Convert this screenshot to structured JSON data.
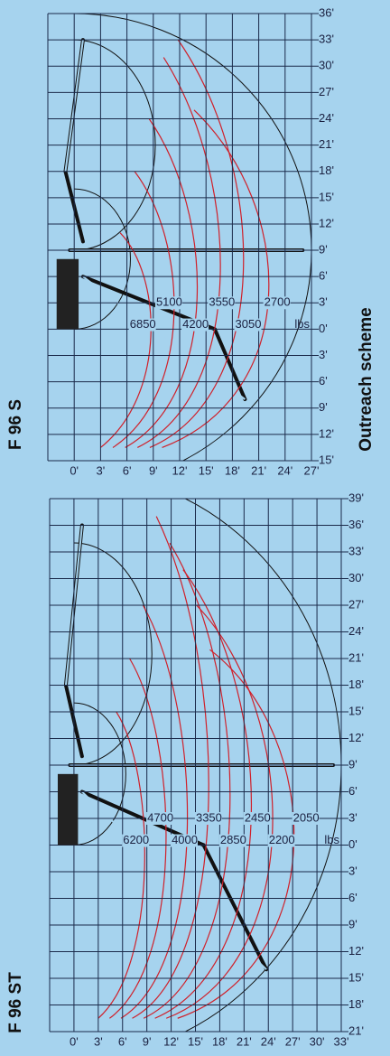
{
  "side_label": "Outreach scheme",
  "chart_data": [
    {
      "type": "outreach",
      "title": "F 96 S",
      "color": "#d0202a",
      "load_unit": "lbs",
      "loads": [
        6850,
        5100,
        4200,
        3550,
        3050,
        2700
      ],
      "xlim": [
        -3,
        27
      ],
      "ylim": [
        -15,
        36
      ],
      "xticks": [
        {
          "value": 0,
          "label": "0'"
        },
        {
          "value": 3,
          "label": "3'"
        },
        {
          "value": 6,
          "label": "6'"
        },
        {
          "value": 9,
          "label": "9'"
        },
        {
          "value": 12,
          "label": "12'"
        },
        {
          "value": 15,
          "label": "15'"
        },
        {
          "value": 18,
          "label": "18'"
        },
        {
          "value": 21,
          "label": "21'"
        },
        {
          "value": 24,
          "label": "24'"
        },
        {
          "value": 27,
          "label": "27'"
        }
      ],
      "yticks": [
        {
          "value": 36,
          "label": "36'"
        },
        {
          "value": 33,
          "label": "33'"
        },
        {
          "value": 30,
          "label": "30'"
        },
        {
          "value": 27,
          "label": "27'"
        },
        {
          "value": 24,
          "label": "24'"
        },
        {
          "value": 21,
          "label": "21'"
        },
        {
          "value": 18,
          "label": "18'"
        },
        {
          "value": 15,
          "label": "15'"
        },
        {
          "value": 12,
          "label": "12'"
        },
        {
          "value": 9,
          "label": "9'"
        },
        {
          "value": 6,
          "label": "6'"
        },
        {
          "value": 3,
          "label": "3'"
        },
        {
          "value": 0,
          "label": "0'"
        },
        {
          "value": -3,
          "label": "3'"
        },
        {
          "value": -6,
          "label": "6'"
        },
        {
          "value": -9,
          "label": "9'"
        },
        {
          "value": -12,
          "label": "12'"
        },
        {
          "value": -15,
          "label": "15'"
        }
      ]
    },
    {
      "type": "outreach",
      "title": "F 96 ST",
      "color": "#d0202a",
      "load_unit": "lbs",
      "loads": [
        6200,
        4700,
        4000,
        3350,
        2850,
        2450,
        2200,
        2050
      ],
      "xlim": [
        -3,
        33
      ],
      "ylim": [
        -21,
        39
      ],
      "xticks": [
        {
          "value": 0,
          "label": "0'"
        },
        {
          "value": 3,
          "label": "3'"
        },
        {
          "value": 6,
          "label": "6'"
        },
        {
          "value": 9,
          "label": "9'"
        },
        {
          "value": 12,
          "label": "12'"
        },
        {
          "value": 15,
          "label": "15'"
        },
        {
          "value": 18,
          "label": "18'"
        },
        {
          "value": 21,
          "label": "21'"
        },
        {
          "value": 24,
          "label": "24'"
        },
        {
          "value": 27,
          "label": "27'"
        },
        {
          "value": 30,
          "label": "30'"
        },
        {
          "value": 33,
          "label": "33'"
        }
      ],
      "yticks": [
        {
          "value": 39,
          "label": "39'"
        },
        {
          "value": 36,
          "label": "36'"
        },
        {
          "value": 33,
          "label": "33'"
        },
        {
          "value": 30,
          "label": "30'"
        },
        {
          "value": 27,
          "label": "27'"
        },
        {
          "value": 24,
          "label": "24'"
        },
        {
          "value": 21,
          "label": "21'"
        },
        {
          "value": 18,
          "label": "18'"
        },
        {
          "value": 15,
          "label": "15'"
        },
        {
          "value": 12,
          "label": "12'"
        },
        {
          "value": 9,
          "label": "9'"
        },
        {
          "value": 6,
          "label": "6'"
        },
        {
          "value": 3,
          "label": "3'"
        },
        {
          "value": 0,
          "label": "0'"
        },
        {
          "value": -3,
          "label": "3'"
        },
        {
          "value": -6,
          "label": "6'"
        },
        {
          "value": -9,
          "label": "9'"
        },
        {
          "value": -12,
          "label": "12'"
        },
        {
          "value": -15,
          "label": "15'"
        },
        {
          "value": -18,
          "label": "18'"
        },
        {
          "value": -21,
          "label": "21'"
        }
      ]
    }
  ]
}
